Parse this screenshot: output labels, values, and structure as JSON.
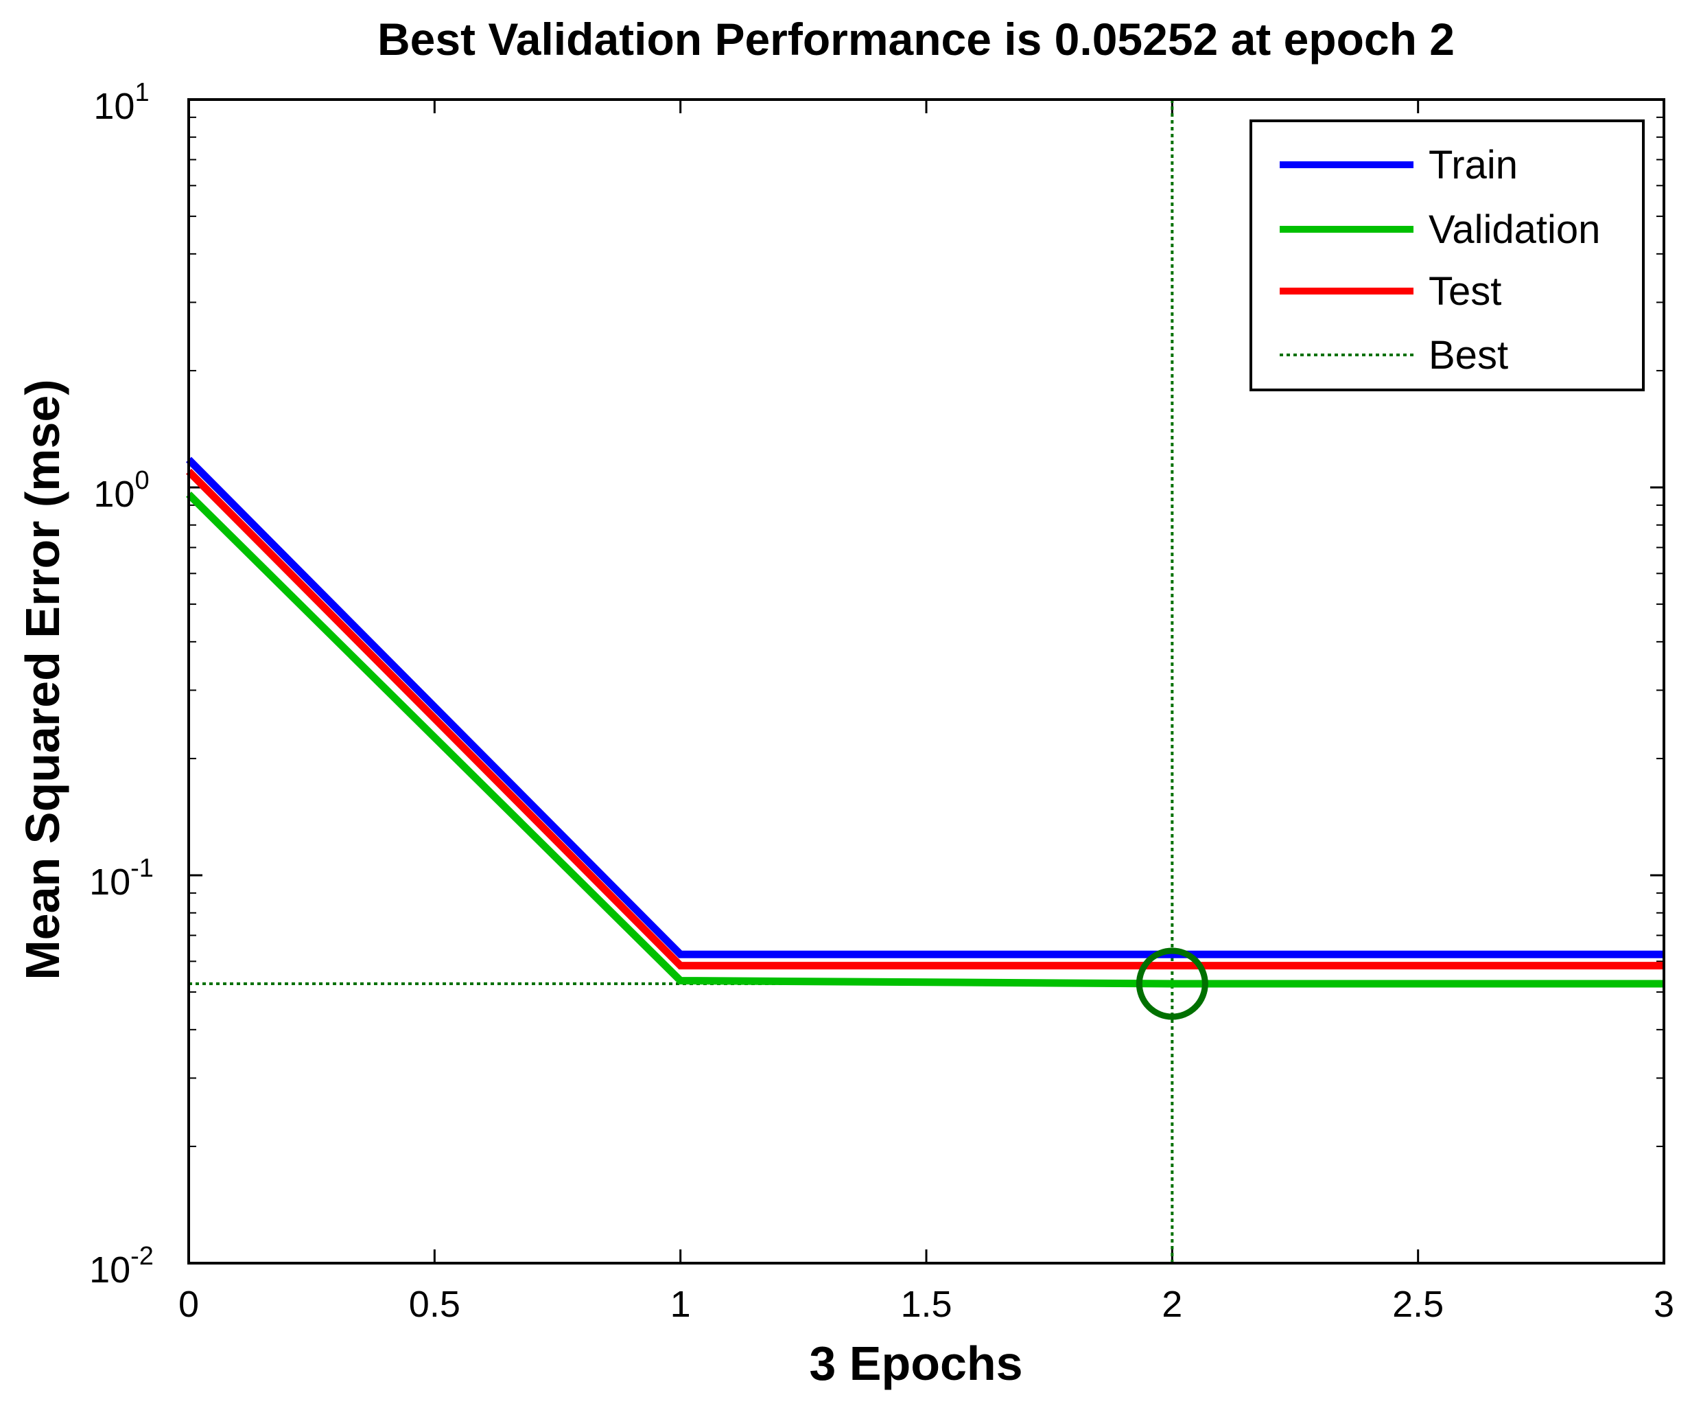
{
  "chart_data": {
    "type": "line",
    "title": "Best Validation Performance is 0.05252 at epoch 2",
    "xlabel": "3 Epochs",
    "ylabel": "Mean Squared Error  (mse)",
    "x_scale": "linear",
    "y_scale": "log",
    "xlim": [
      0,
      3
    ],
    "ylim": [
      0.01,
      10
    ],
    "x_ticks": [
      0,
      0.5,
      1,
      1.5,
      2,
      2.5,
      3
    ],
    "x_tick_labels": [
      "0",
      "0.5",
      "1",
      "1.5",
      "2",
      "2.5",
      "3"
    ],
    "y_ticks": [
      {
        "value": 0.01,
        "base": "10",
        "exp": "-2"
      },
      {
        "value": 0.1,
        "base": "10",
        "exp": "-1"
      },
      {
        "value": 1,
        "base": "10",
        "exp": "0"
      },
      {
        "value": 10,
        "base": "10",
        "exp": "1"
      }
    ],
    "series": [
      {
        "name": "Train",
        "color": "#0000ff",
        "style": "solid",
        "x": [
          0,
          1,
          2,
          3
        ],
        "values": [
          1.18,
          0.0625,
          0.0625,
          0.0625
        ]
      },
      {
        "name": "Validation",
        "color": "#00c000",
        "style": "solid",
        "x": [
          0,
          1,
          2,
          3
        ],
        "values": [
          0.96,
          0.0535,
          0.05252,
          0.05252
        ]
      },
      {
        "name": "Test",
        "color": "#ff0000",
        "style": "solid",
        "x": [
          0,
          1,
          2,
          3
        ],
        "values": [
          1.1,
          0.0585,
          0.0585,
          0.0585
        ]
      }
    ],
    "best": {
      "name": "Best",
      "color": "#007000",
      "style": "dotted",
      "epoch": 2,
      "value": 0.05252
    },
    "legend": {
      "position": "top-right",
      "entries": [
        {
          "label": "Train",
          "color": "#0000ff",
          "style": "solid"
        },
        {
          "label": "Validation",
          "color": "#00c000",
          "style": "solid"
        },
        {
          "label": "Test",
          "color": "#ff0000",
          "style": "solid"
        },
        {
          "label": "Best",
          "color": "#007000",
          "style": "dotted"
        }
      ]
    }
  }
}
